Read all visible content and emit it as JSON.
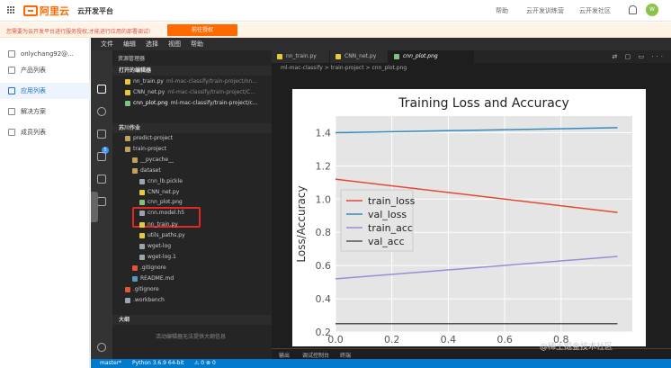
{
  "topbar": {
    "logo_text": "阿里云",
    "platform": "云开发平台",
    "links": [
      "帮助",
      "云开发训练营",
      "云开发社区"
    ],
    "bell_badge": "1",
    "avatar": "W"
  },
  "notice": {
    "text": "您需要为云开发平台进行服务授权,才能进行应用的部署调试!",
    "button": "前往授权"
  },
  "leftnav": {
    "user": "onlychang92@...",
    "items": [
      "产品列表",
      "应用列表",
      "解决方案",
      "成员列表"
    ]
  },
  "ide": {
    "menus": [
      "文件",
      "编辑",
      "选择",
      "视图",
      "帮助"
    ],
    "explorer_title": "资源管理器",
    "open_editors_header": "打开的编辑器",
    "open_editors": [
      {
        "name": "nn_train.py",
        "path": "ml-mac-classify/train-project/nn..."
      },
      {
        "name": "CNN_net.py",
        "path": "ml-mac-classify/train-project/C..."
      },
      {
        "name": "cnn_plot.png",
        "path": "ml-mac-classify/train-project/c..."
      }
    ],
    "workspace_header": "苏川作业",
    "tree": [
      "predict-project",
      "train-project",
      "__pycache__",
      "dataset",
      "cnn_lb.pickle",
      "CNN_net.py",
      "cnn_plot.png",
      "cnn.model.h5",
      "nn_train.py",
      "utils_paths.py",
      "wget-log",
      "wget-log.1",
      ".gitignore",
      "README.md",
      ".gitignore",
      ".workbench"
    ],
    "outline_header": "大纲",
    "outline_empty": "活动编辑器无法提供大纲信息",
    "tabs": [
      "nn_train.py",
      "CNN_net.py",
      "cnn_plot.png"
    ],
    "toolbar_icons": "⇄ ▢ ▭ ···",
    "breadcrumb": [
      "ml-mac-classify",
      "train-project",
      "cnn_plot.png"
    ],
    "panel_tabs": [
      "输出",
      "调试控制台",
      "终端"
    ],
    "status": {
      "branch": "master*",
      "python": "Python 3.6.9 64-bit",
      "extra": "⚠ 0 ⊗ 0"
    },
    "settings_icon": "gear-icon",
    "badge": "5"
  },
  "chart_data": {
    "type": "line",
    "title": "Training Loss and Accuracy",
    "xlabel": "",
    "ylabel": "Loss/Accuracy",
    "x": [
      0.0,
      1.0
    ],
    "xlim": [
      0.0,
      1.0
    ],
    "ylim": [
      0.2,
      1.5
    ],
    "yticks": [
      "0.2",
      "0.4",
      "0.6",
      "0.8",
      "1.0",
      "1.2",
      "1.4"
    ],
    "xticks": [
      "0.0",
      "0.2",
      "0.4",
      "0.6",
      "0.8"
    ],
    "legend_position": "center-left",
    "grid": true,
    "series": [
      {
        "name": "train_loss",
        "color": "#e24a33",
        "values": [
          1.12,
          0.92
        ]
      },
      {
        "name": "val_loss",
        "color": "#348abd",
        "values": [
          1.4,
          1.43
        ]
      },
      {
        "name": "train_acc",
        "color": "#988ed5",
        "values": [
          0.52,
          0.655
        ]
      },
      {
        "name": "val_acc",
        "color": "#555555",
        "values": [
          0.25,
          0.25
        ]
      }
    ]
  },
  "watermark": "@稀土掘金技术社区"
}
